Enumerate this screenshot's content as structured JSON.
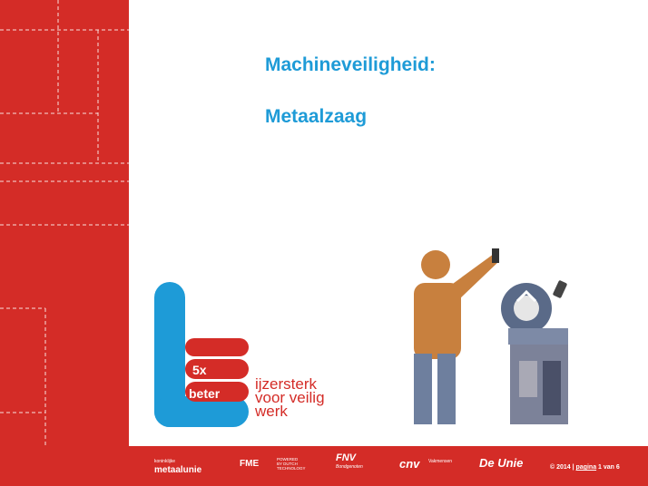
{
  "slide": {
    "title_line1": "Machineveiligheid:",
    "title_line2": "Metaalzaag"
  },
  "logo": {
    "badge_5x": "5x",
    "badge_beter": "beter",
    "tagline": [
      "ijzersterk",
      "voor veilig",
      "werk"
    ]
  },
  "illustration": {
    "icon": "worker-at-metal-saw-icon"
  },
  "footer": {
    "partners": {
      "metaalunie_small": "koninklijke",
      "metaalunie": "metaalunie",
      "fme": "FME",
      "fme_sub": [
        "POWERED",
        "BY DUTCH",
        "TECHNOLOGY"
      ],
      "fnv": "FNV",
      "fnv_sub": "Bondgenoten",
      "cnv": "cnv",
      "cnv_sub": "Vakmensen",
      "deunie": "De Unie"
    },
    "copyright_prefix": "© 2014 | ",
    "copyright_page": "pagina",
    "copyright_suffix": " 1 van 6"
  },
  "colors": {
    "brand_red": "#d42c27",
    "title_blue": "#1e9bd7",
    "logo_blue": "#1e9bd7"
  }
}
